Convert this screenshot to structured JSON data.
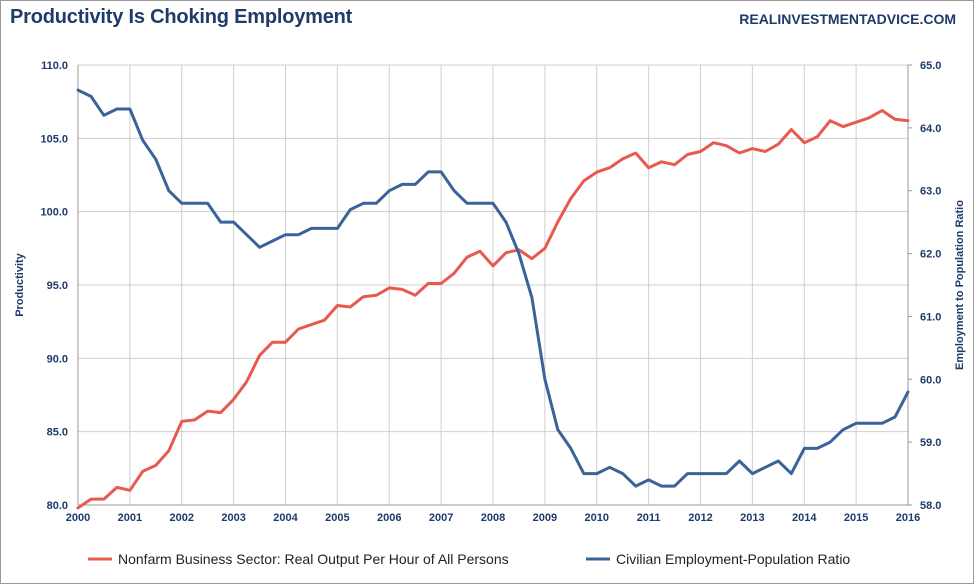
{
  "chart_data": {
    "type": "line",
    "title": "Productivity Is Choking Employment",
    "source": "REALINVESTMENTADVICE.COM",
    "x_range": [
      2000,
      2016
    ],
    "x_ticks": [
      "2000",
      "2001",
      "2002",
      "2003",
      "2004",
      "2005",
      "2006",
      "2007",
      "2008",
      "2009",
      "2010",
      "2011",
      "2012",
      "2013",
      "2014",
      "2015",
      "2016"
    ],
    "y_left": {
      "label": "Productivity",
      "range": [
        80,
        110
      ],
      "ticks": [
        "80.0",
        "85.0",
        "90.0",
        "95.0",
        "100.0",
        "105.0",
        "110.0"
      ]
    },
    "y_right": {
      "label": "Employment to Population Ratio",
      "range": [
        58,
        65
      ],
      "ticks": [
        "58.0",
        "59.0",
        "60.0",
        "61.0",
        "62.0",
        "63.0",
        "64.0",
        "65.0"
      ]
    },
    "grid": true,
    "legend_position": "bottom",
    "series": [
      {
        "name": "Nonfarm Business Sector: Real Output Per Hour of All Persons",
        "axis": "left",
        "color": "#e8594f",
        "x": [
          2000.0,
          2000.25,
          2000.5,
          2000.75,
          2001.0,
          2001.25,
          2001.5,
          2001.75,
          2002.0,
          2002.25,
          2002.5,
          2002.75,
          2003.0,
          2003.25,
          2003.5,
          2003.75,
          2004.0,
          2004.25,
          2004.5,
          2004.75,
          2005.0,
          2005.25,
          2005.5,
          2005.75,
          2006.0,
          2006.25,
          2006.5,
          2006.75,
          2007.0,
          2007.25,
          2007.5,
          2007.75,
          2008.0,
          2008.25,
          2008.5,
          2008.75,
          2009.0,
          2009.25,
          2009.5,
          2009.75,
          2010.0,
          2010.25,
          2010.5,
          2010.75,
          2011.0,
          2011.25,
          2011.5,
          2011.75,
          2012.0,
          2012.25,
          2012.5,
          2012.75,
          2013.0,
          2013.25,
          2013.5,
          2013.75,
          2014.0,
          2014.25,
          2014.5,
          2014.75,
          2015.0,
          2015.25,
          2015.5,
          2015.75,
          2016.0
        ],
        "values": [
          79.8,
          80.4,
          80.4,
          81.2,
          81.0,
          82.3,
          82.7,
          83.7,
          85.7,
          85.8,
          86.4,
          86.3,
          87.2,
          88.4,
          90.2,
          91.1,
          91.1,
          92.0,
          92.3,
          92.6,
          93.6,
          93.5,
          94.2,
          94.3,
          94.8,
          94.7,
          94.3,
          95.1,
          95.1,
          95.8,
          96.9,
          97.3,
          96.3,
          97.2,
          97.4,
          96.8,
          97.5,
          99.3,
          100.9,
          102.1,
          102.7,
          103.0,
          103.6,
          104.0,
          103.0,
          103.4,
          103.2,
          103.9,
          104.1,
          104.7,
          104.5,
          104.0,
          104.3,
          104.1,
          104.6,
          105.6,
          104.7,
          105.1,
          106.2,
          105.8,
          106.1,
          106.4,
          106.9,
          106.3,
          106.2
        ]
      },
      {
        "name": "Civilian Employment-Population Ratio",
        "axis": "right",
        "color": "#3a6399",
        "x": [
          2000.0,
          2000.25,
          2000.5,
          2000.75,
          2001.0,
          2001.25,
          2001.5,
          2001.75,
          2002.0,
          2002.25,
          2002.5,
          2002.75,
          2003.0,
          2003.25,
          2003.5,
          2003.75,
          2004.0,
          2004.25,
          2004.5,
          2004.75,
          2005.0,
          2005.25,
          2005.5,
          2005.75,
          2006.0,
          2006.25,
          2006.5,
          2006.75,
          2007.0,
          2007.25,
          2007.5,
          2007.75,
          2008.0,
          2008.25,
          2008.5,
          2008.75,
          2009.0,
          2009.25,
          2009.5,
          2009.75,
          2010.0,
          2010.25,
          2010.5,
          2010.75,
          2011.0,
          2011.25,
          2011.5,
          2011.75,
          2012.0,
          2012.25,
          2012.5,
          2012.75,
          2013.0,
          2013.25,
          2013.5,
          2013.75,
          2014.0,
          2014.25,
          2014.5,
          2014.75,
          2015.0,
          2015.25,
          2015.5,
          2015.75,
          2016.0
        ],
        "values": [
          64.6,
          64.5,
          64.2,
          64.3,
          64.3,
          63.8,
          63.5,
          63.0,
          62.8,
          62.8,
          62.8,
          62.5,
          62.5,
          62.3,
          62.1,
          62.2,
          62.3,
          62.3,
          62.4,
          62.4,
          62.4,
          62.7,
          62.8,
          62.8,
          63.0,
          63.1,
          63.1,
          63.3,
          63.3,
          63.0,
          62.8,
          62.8,
          62.8,
          62.5,
          62.0,
          61.3,
          60.0,
          59.2,
          58.9,
          58.5,
          58.5,
          58.6,
          58.5,
          58.3,
          58.4,
          58.3,
          58.3,
          58.5,
          58.5,
          58.5,
          58.5,
          58.7,
          58.5,
          58.6,
          58.7,
          58.5,
          58.9,
          58.9,
          59.0,
          59.2,
          59.3,
          59.3,
          59.3,
          59.4,
          59.8
        ]
      }
    ]
  }
}
